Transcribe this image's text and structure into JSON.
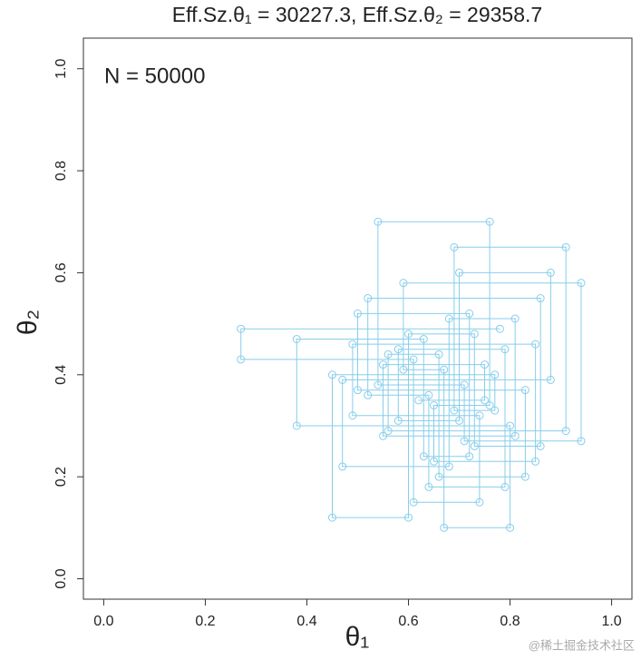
{
  "chart_data": {
    "type": "scatter",
    "title": "Eff.Sz.θ₁ = 30227.3, Eff.Sz.θ₂ = 29358.7",
    "annotation": "N = 50000",
    "watermark": "@稀土掘金技术社区",
    "xlabel": "θ₁",
    "ylabel": "θ₂",
    "color": "#87ceeb",
    "connect": true,
    "xlim": [
      -0.04,
      1.04
    ],
    "ylim": [
      -0.04,
      1.06
    ],
    "xticks": [
      {
        "value": 0,
        "label": "0.0"
      },
      0.2,
      0.4,
      0.6,
      0.8,
      {
        "value": 1,
        "label": "1.0"
      }
    ],
    "yticks": [
      {
        "value": 0,
        "label": "0.0"
      },
      0.2,
      0.4,
      0.6,
      0.8,
      {
        "value": 1,
        "label": "1.0"
      }
    ],
    "x": [
      0.62,
      0.75,
      0.75,
      0.55,
      0.55,
      0.81,
      0.81,
      0.68,
      0.68,
      0.47,
      0.47,
      0.88,
      0.88,
      0.7,
      0.7,
      0.58,
      0.58,
      0.79,
      0.79,
      0.64,
      0.64,
      0.52,
      0.52,
      0.86,
      0.86,
      0.73,
      0.73,
      0.6,
      0.6,
      0.45,
      0.45,
      0.77,
      0.77,
      0.69,
      0.69,
      0.91,
      0.91,
      0.56,
      0.56,
      0.66,
      0.66,
      0.83,
      0.83,
      0.5,
      0.5,
      0.72,
      0.72,
      0.63,
      0.63,
      0.38,
      0.38,
      0.8,
      0.8,
      0.67,
      0.67,
      0.59,
      0.59,
      0.94,
      0.94,
      0.71,
      0.71,
      0.54,
      0.54,
      0.76,
      0.76,
      0.65,
      0.65,
      0.85,
      0.85,
      0.49,
      0.49,
      0.74,
      0.74,
      0.61,
      0.61,
      0.27,
      0.27,
      0.78
    ],
    "y": [
      0.35,
      0.35,
      0.42,
      0.42,
      0.28,
      0.28,
      0.51,
      0.51,
      0.22,
      0.22,
      0.39,
      0.39,
      0.6,
      0.6,
      0.31,
      0.31,
      0.45,
      0.45,
      0.18,
      0.18,
      0.36,
      0.36,
      0.55,
      0.55,
      0.26,
      0.26,
      0.48,
      0.48,
      0.12,
      0.12,
      0.4,
      0.4,
      0.33,
      0.33,
      0.65,
      0.65,
      0.29,
      0.29,
      0.44,
      0.44,
      0.2,
      0.2,
      0.37,
      0.37,
      0.52,
      0.52,
      0.24,
      0.24,
      0.47,
      0.47,
      0.3,
      0.3,
      0.1,
      0.1,
      0.41,
      0.41,
      0.58,
      0.58,
      0.27,
      0.27,
      0.38,
      0.38,
      0.7,
      0.7,
      0.34,
      0.34,
      0.23,
      0.23,
      0.46,
      0.46,
      0.32,
      0.32,
      0.15,
      0.15,
      0.43,
      0.43,
      0.49,
      0.49
    ]
  }
}
